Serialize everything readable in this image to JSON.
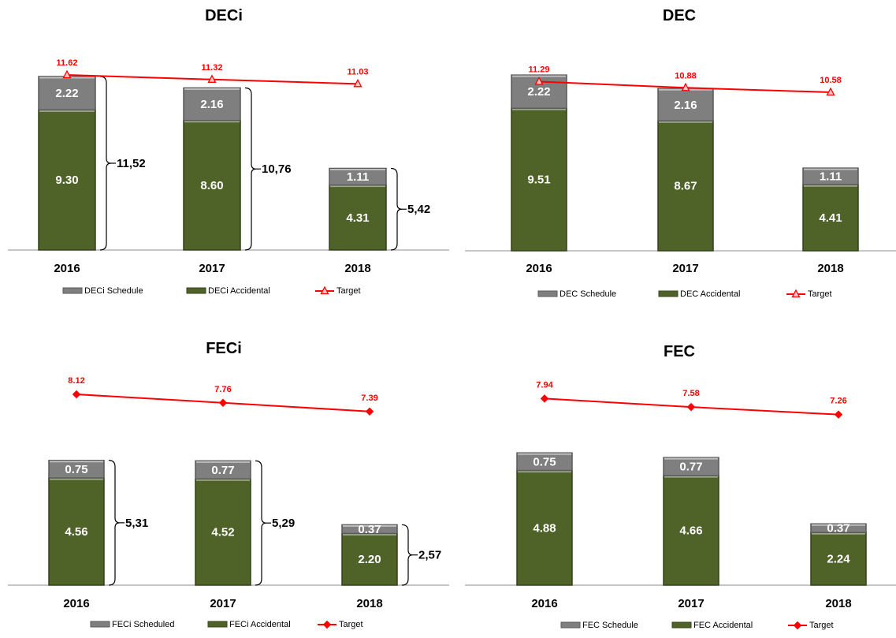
{
  "chart_data": [
    {
      "type": "bar",
      "title": "DECi",
      "categories": [
        "2016",
        "2017",
        "2018"
      ],
      "series": [
        {
          "name": "DECi Accidental",
          "values": [
            9.3,
            8.6,
            4.31
          ],
          "labels": [
            "9.30",
            "8.60",
            "4.31"
          ],
          "color": "#4f6228"
        },
        {
          "name": "DECi Schedule",
          "values": [
            2.22,
            2.16,
            1.11
          ],
          "labels": [
            "2.22",
            "2.16",
            "1.11"
          ],
          "color": "#7f7f7f"
        }
      ],
      "target": {
        "name": "Target",
        "values": [
          11.62,
          11.32,
          11.03
        ],
        "labels": [
          "11.62",
          "11.32",
          "11.03"
        ],
        "color": "#ff0000",
        "marker": "triangle"
      },
      "totals": [
        "11,52",
        "10,76",
        "5,42"
      ],
      "legend_position": "bottom",
      "grid": false
    },
    {
      "type": "bar",
      "title": "DEC",
      "categories": [
        "2016",
        "2017",
        "2018"
      ],
      "series": [
        {
          "name": "DEC Accidental",
          "values": [
            9.51,
            8.67,
            4.41
          ],
          "labels": [
            "9.51",
            "8.67",
            "4.41"
          ],
          "color": "#4f6228"
        },
        {
          "name": "DEC Schedule",
          "values": [
            2.22,
            2.16,
            1.11
          ],
          "labels": [
            "2.22",
            "2.16",
            "1.11"
          ],
          "color": "#7f7f7f"
        }
      ],
      "target": {
        "name": "Target",
        "values": [
          11.29,
          10.88,
          10.58
        ],
        "labels": [
          "11.29",
          "10.88",
          "10.58"
        ],
        "color": "#ff0000",
        "marker": "triangle"
      },
      "totals": [],
      "legend_position": "bottom",
      "grid": false
    },
    {
      "type": "bar",
      "title": "FECi",
      "categories": [
        "2016",
        "2017",
        "2018"
      ],
      "series": [
        {
          "name": "FECi Accidental",
          "values": [
            4.56,
            4.52,
            2.2
          ],
          "labels": [
            "4.56",
            "4.52",
            "2.20"
          ],
          "color": "#4f6228"
        },
        {
          "name": "FECi Scheduled",
          "values": [
            0.75,
            0.77,
            0.37
          ],
          "labels": [
            "0.75",
            "0.77",
            "0.37"
          ],
          "color": "#7f7f7f"
        }
      ],
      "target": {
        "name": "Target",
        "values": [
          8.12,
          7.76,
          7.39
        ],
        "labels": [
          "8.12",
          "7.76",
          "7.39"
        ],
        "color": "#ff0000",
        "marker": "diamond"
      },
      "totals": [
        "5,31",
        "5,29",
        "2,57"
      ],
      "legend_position": "bottom",
      "grid": false
    },
    {
      "type": "bar",
      "title": "FEC",
      "categories": [
        "2016",
        "2017",
        "2018"
      ],
      "series": [
        {
          "name": "FEC Accidental",
          "values": [
            4.88,
            4.66,
            2.24
          ],
          "labels": [
            "4.88",
            "4.66",
            "2.24"
          ],
          "color": "#4f6228"
        },
        {
          "name": "FEC Schedule",
          "values": [
            0.75,
            0.77,
            0.37
          ],
          "labels": [
            "0.75",
            "0.77",
            "0.37"
          ],
          "color": "#7f7f7f"
        }
      ],
      "target": {
        "name": "Target",
        "values": [
          7.94,
          7.58,
          7.26
        ],
        "labels": [
          "7.94",
          "7.58",
          "7.26"
        ],
        "color": "#ff0000",
        "marker": "diamond"
      },
      "totals": [],
      "legend_position": "bottom",
      "grid": false
    }
  ]
}
